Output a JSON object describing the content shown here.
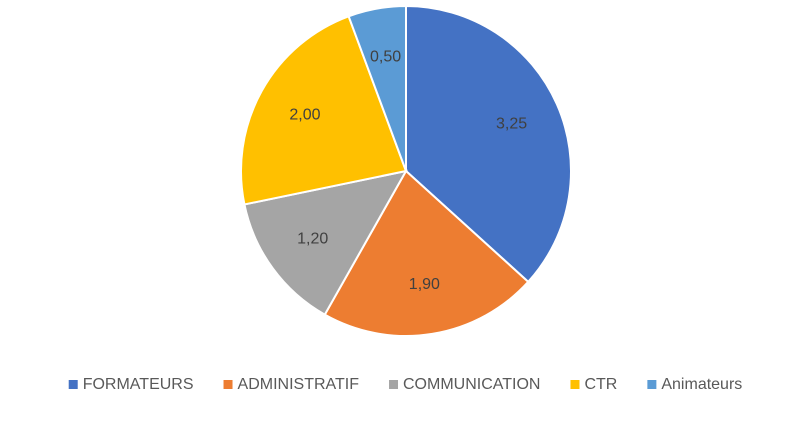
{
  "chart_data": {
    "type": "pie",
    "categories": [
      "FORMATEURS",
      "ADMINISTRATIF",
      "COMMUNICATION",
      "CTR",
      "Animateurs"
    ],
    "values": [
      3.25,
      1.9,
      1.2,
      2.0,
      0.5
    ],
    "value_labels": [
      "3,25",
      "1,90",
      "1,20",
      "2,00",
      "0,50"
    ],
    "colors": [
      "#4472c4",
      "#ed7d31",
      "#a5a5a5",
      "#ffc000",
      "#5b9bd5"
    ],
    "legend": "bottom"
  }
}
